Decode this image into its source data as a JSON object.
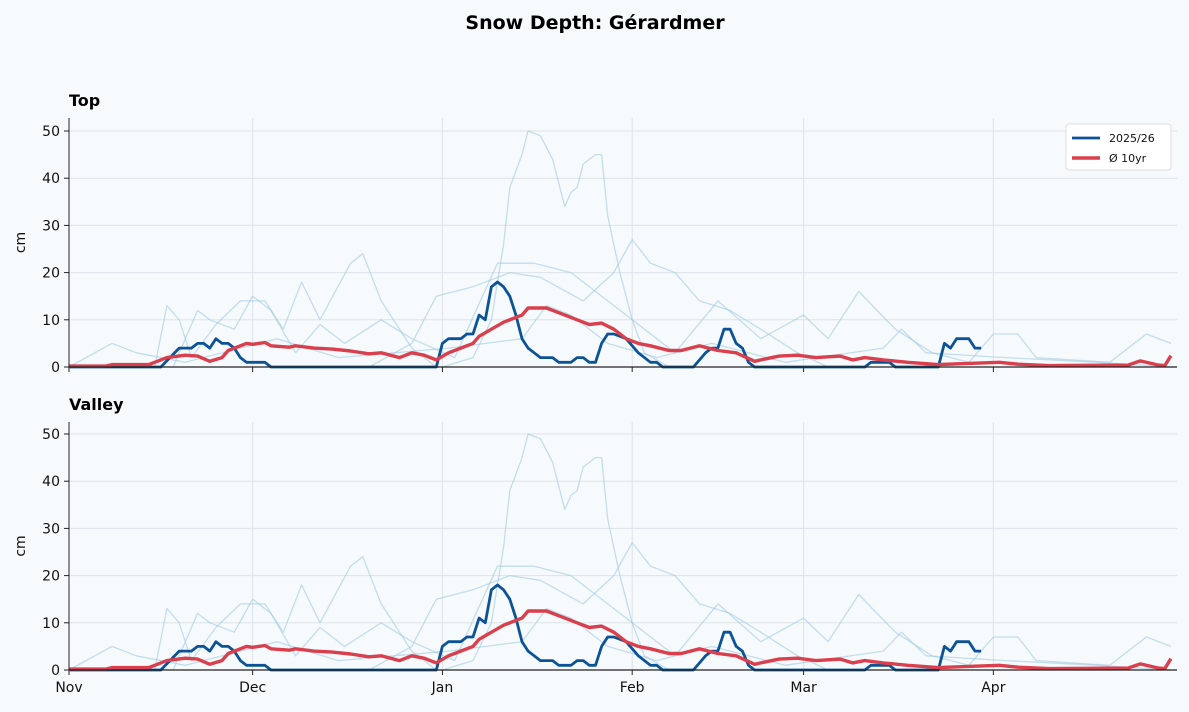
{
  "chart_data": {
    "type": "line",
    "title": "Snow Depth: Gérardmer",
    "ylabel": "cm",
    "ylim": [
      0,
      52.5
    ],
    "yticks": [
      0,
      10,
      20,
      30,
      40,
      50
    ],
    "xlim": [
      "Nov 1",
      "Apr 30"
    ],
    "xticks": [
      "Nov",
      "Dec",
      "Jan",
      "Feb",
      "Mar",
      "Apr"
    ],
    "grid": true,
    "legend_position": "top-right",
    "panels": [
      {
        "title": "Top"
      },
      {
        "title": "Valley"
      }
    ],
    "colors": {
      "current": "#0b5396",
      "average": "#d93f4c",
      "past": "#9ecae1",
      "background": "#f7fafc"
    },
    "series": [
      {
        "name": "2025/26",
        "role": "current",
        "points": [
          [
            "Nov 1",
            0
          ],
          [
            "Nov 16",
            0
          ],
          [
            "Nov 19",
            4
          ],
          [
            "Nov 21",
            4
          ],
          [
            "Nov 22",
            5
          ],
          [
            "Nov 23",
            5
          ],
          [
            "Nov 24",
            4
          ],
          [
            "Nov 25",
            6
          ],
          [
            "Nov 26",
            5
          ],
          [
            "Nov 27",
            5
          ],
          [
            "Nov 28",
            4
          ],
          [
            "Nov 29",
            2
          ],
          [
            "Nov 30",
            1
          ],
          [
            "Dec 3",
            1
          ],
          [
            "Dec 4",
            0
          ],
          [
            "Dec 31",
            0
          ],
          [
            "Jan 1",
            5
          ],
          [
            "Jan 2",
            6
          ],
          [
            "Jan 4",
            6
          ],
          [
            "Jan 5",
            7
          ],
          [
            "Jan 6",
            7
          ],
          [
            "Jan 7",
            11
          ],
          [
            "Jan 8",
            10
          ],
          [
            "Jan 9",
            17
          ],
          [
            "Jan 10",
            18
          ],
          [
            "Jan 11",
            17
          ],
          [
            "Jan 12",
            15
          ],
          [
            "Jan 13",
            11
          ],
          [
            "Jan 14",
            6
          ],
          [
            "Jan 15",
            4
          ],
          [
            "Jan 16",
            3
          ],
          [
            "Jan 17",
            2
          ],
          [
            "Jan 19",
            2
          ],
          [
            "Jan 20",
            1
          ],
          [
            "Jan 22",
            1
          ],
          [
            "Jan 23",
            2
          ],
          [
            "Jan 24",
            2
          ],
          [
            "Jan 25",
            1
          ],
          [
            "Jan 26",
            1
          ],
          [
            "Jan 27",
            5
          ],
          [
            "Jan 28",
            7
          ],
          [
            "Jan 29",
            7
          ],
          [
            "Jan 31",
            6
          ],
          [
            "Feb 2",
            3
          ],
          [
            "Feb 4",
            1
          ],
          [
            "Feb 5",
            1
          ],
          [
            "Feb 6",
            0
          ],
          [
            "Feb 11",
            0
          ],
          [
            "Feb 13",
            3
          ],
          [
            "Feb 14",
            4
          ],
          [
            "Feb 15",
            4
          ],
          [
            "Feb 16",
            8
          ],
          [
            "Feb 17",
            8
          ],
          [
            "Feb 18",
            5
          ],
          [
            "Feb 19",
            4
          ],
          [
            "Feb 20",
            1
          ],
          [
            "Feb 21",
            0
          ],
          [
            "Mar 11",
            0
          ],
          [
            "Mar 12",
            1
          ],
          [
            "Mar 15",
            1
          ],
          [
            "Mar 16",
            0
          ],
          [
            "Mar 23",
            0
          ],
          [
            "Mar 24",
            5
          ],
          [
            "Mar 25",
            4
          ],
          [
            "Mar 26",
            6
          ],
          [
            "Mar 28",
            6
          ],
          [
            "Mar 29",
            4
          ],
          [
            "Mar 30",
            4
          ]
        ]
      },
      {
        "name": "Ø 10yr",
        "role": "average",
        "points": [
          [
            "Nov 1",
            0.2
          ],
          [
            "Nov 7",
            0.2
          ],
          [
            "Nov 8",
            0.5
          ],
          [
            "Nov 14",
            0.5
          ],
          [
            "Nov 15",
            1
          ],
          [
            "Nov 17",
            2
          ],
          [
            "Nov 20",
            2.5
          ],
          [
            "Nov 22",
            2.3
          ],
          [
            "Nov 24",
            1.2
          ],
          [
            "Nov 26",
            2
          ],
          [
            "Nov 27",
            3.5
          ],
          [
            "Nov 30",
            5
          ],
          [
            "Dec 1",
            4.8
          ],
          [
            "Dec 3",
            5.2
          ],
          [
            "Dec 4",
            4.5
          ],
          [
            "Dec 7",
            4.2
          ],
          [
            "Dec 8",
            4.5
          ],
          [
            "Dec 11",
            4
          ],
          [
            "Dec 14",
            3.8
          ],
          [
            "Dec 17",
            3.4
          ],
          [
            "Dec 20",
            2.8
          ],
          [
            "Dec 22",
            3
          ],
          [
            "Dec 25",
            2
          ],
          [
            "Dec 27",
            3
          ],
          [
            "Dec 29",
            2.5
          ],
          [
            "Dec 31",
            1.5
          ],
          [
            "Jan 2",
            3
          ],
          [
            "Jan 4",
            4
          ],
          [
            "Jan 6",
            5
          ],
          [
            "Jan 7",
            6.5
          ],
          [
            "Jan 9",
            8
          ],
          [
            "Jan 11",
            9.5
          ],
          [
            "Jan 14",
            11
          ],
          [
            "Jan 15",
            12.5
          ],
          [
            "Jan 18",
            12.5
          ],
          [
            "Jan 20",
            11.5
          ],
          [
            "Jan 23",
            10
          ],
          [
            "Jan 25",
            9
          ],
          [
            "Jan 27",
            9.3
          ],
          [
            "Jan 29",
            8
          ],
          [
            "Jan 31",
            6
          ],
          [
            "Feb 2",
            5
          ],
          [
            "Feb 4",
            4.5
          ],
          [
            "Feb 7",
            3.5
          ],
          [
            "Feb 9",
            3.5
          ],
          [
            "Feb 12",
            4.5
          ],
          [
            "Feb 15",
            3.5
          ],
          [
            "Feb 18",
            3
          ],
          [
            "Feb 21",
            1.2
          ],
          [
            "Feb 22",
            1.5
          ],
          [
            "Feb 25",
            2.3
          ],
          [
            "Feb 28",
            2.5
          ],
          [
            "Mar 3",
            2
          ],
          [
            "Mar 7",
            2.3
          ],
          [
            "Mar 9",
            1.5
          ],
          [
            "Mar 11",
            2
          ],
          [
            "Mar 14",
            1.5
          ],
          [
            "Mar 18",
            1
          ],
          [
            "Mar 23",
            0.5
          ],
          [
            "Mar 29",
            0.8
          ],
          [
            "Apr 2",
            1
          ],
          [
            "Apr 5",
            0.6
          ],
          [
            "Apr 10",
            0.3
          ],
          [
            "Apr 23",
            0.4
          ],
          [
            "Apr 25",
            1.3
          ],
          [
            "Apr 28",
            0.4
          ],
          [
            "Apr 29",
            0.3
          ],
          [
            "Apr 30",
            2.4
          ]
        ]
      },
      {
        "role": "past",
        "points": [
          [
            "Jan 1",
            0
          ],
          [
            "Jan 6",
            2
          ],
          [
            "Jan 9",
            10
          ],
          [
            "Jan 11",
            26
          ],
          [
            "Jan 12",
            38
          ],
          [
            "Jan 14",
            45
          ],
          [
            "Jan 15",
            50
          ],
          [
            "Jan 17",
            49
          ],
          [
            "Jan 19",
            44
          ],
          [
            "Jan 21",
            34
          ],
          [
            "Jan 22",
            37
          ],
          [
            "Jan 23",
            38
          ],
          [
            "Jan 24",
            43
          ],
          [
            "Jan 26",
            45
          ],
          [
            "Jan 27",
            45
          ],
          [
            "Jan 28",
            32
          ],
          [
            "Jan 30",
            20
          ],
          [
            "Feb 1",
            10
          ],
          [
            "Feb 3",
            3
          ],
          [
            "Feb 7",
            0
          ]
        ]
      },
      {
        "role": "past",
        "points": [
          [
            "Dec 20",
            0
          ],
          [
            "Dec 27",
            5
          ],
          [
            "Dec 31",
            15
          ],
          [
            "Jan 6",
            17
          ],
          [
            "Jan 12",
            20
          ],
          [
            "Jan 17",
            19
          ],
          [
            "Jan 24",
            14
          ],
          [
            "Jan 29",
            20
          ],
          [
            "Feb 1",
            27
          ],
          [
            "Feb 4",
            22
          ],
          [
            "Feb 8",
            20
          ],
          [
            "Feb 12",
            14
          ],
          [
            "Feb 17",
            12
          ],
          [
            "Feb 22",
            8
          ],
          [
            "Feb 28",
            3
          ],
          [
            "Mar 5",
            0
          ]
        ]
      },
      {
        "role": "past",
        "points": [
          [
            "Nov 15",
            0
          ],
          [
            "Nov 17",
            13
          ],
          [
            "Nov 19",
            10
          ],
          [
            "Nov 21",
            2
          ],
          [
            "Nov 25",
            9
          ],
          [
            "Nov 29",
            14
          ],
          [
            "Dec 3",
            14
          ],
          [
            "Dec 6",
            8
          ],
          [
            "Dec 9",
            18
          ],
          [
            "Dec 12",
            10
          ],
          [
            "Dec 17",
            22
          ],
          [
            "Dec 19",
            24
          ],
          [
            "Dec 22",
            14
          ],
          [
            "Dec 27",
            4
          ],
          [
            "Dec 31",
            0
          ]
        ]
      },
      {
        "role": "past",
        "points": [
          [
            "Nov 18",
            0
          ],
          [
            "Nov 22",
            12
          ],
          [
            "Nov 24",
            10
          ],
          [
            "Nov 28",
            8
          ],
          [
            "Dec 1",
            15
          ],
          [
            "Dec 4",
            12
          ],
          [
            "Dec 8",
            3
          ],
          [
            "Dec 12",
            9
          ],
          [
            "Dec 16",
            5
          ],
          [
            "Dec 22",
            10
          ],
          [
            "Dec 27",
            6
          ],
          [
            "Jan 3",
            2
          ],
          [
            "Jan 10",
            22
          ],
          [
            "Jan 16",
            22
          ],
          [
            "Jan 22",
            20
          ],
          [
            "Jan 28",
            14
          ],
          [
            "Feb 3",
            8
          ],
          [
            "Feb 8",
            3
          ],
          [
            "Feb 15",
            14
          ],
          [
            "Feb 22",
            6
          ],
          [
            "Mar 1",
            11
          ],
          [
            "Mar 5",
            6
          ],
          [
            "Mar 10",
            16
          ],
          [
            "Mar 16",
            8
          ],
          [
            "Mar 22",
            3
          ],
          [
            "Mar 28",
            1
          ],
          [
            "Apr 1",
            7
          ],
          [
            "Apr 5",
            7
          ],
          [
            "Apr 8",
            2
          ],
          [
            "Apr 20",
            1
          ],
          [
            "Apr 26",
            7
          ],
          [
            "Apr 30",
            5
          ]
        ]
      },
      {
        "role": "past",
        "points": [
          [
            "Nov 1",
            0
          ],
          [
            "Nov 8",
            5
          ],
          [
            "Nov 12",
            3
          ],
          [
            "Nov 20",
            1
          ],
          [
            "Dec 5",
            6
          ],
          [
            "Dec 15",
            2
          ],
          [
            "Jan 2",
            4
          ],
          [
            "Jan 14",
            6
          ],
          [
            "Jan 18",
            13
          ],
          [
            "Jan 22",
            11
          ],
          [
            "Jan 28",
            5
          ],
          [
            "Feb 5",
            2
          ],
          [
            "Feb 14",
            5
          ],
          [
            "Feb 26",
            1
          ],
          [
            "Mar 14",
            4
          ],
          [
            "Mar 17",
            8
          ],
          [
            "Mar 21",
            3
          ],
          [
            "Apr 3",
            2
          ],
          [
            "Apr 18",
            1
          ],
          [
            "Apr 30",
            0
          ]
        ]
      }
    ]
  }
}
